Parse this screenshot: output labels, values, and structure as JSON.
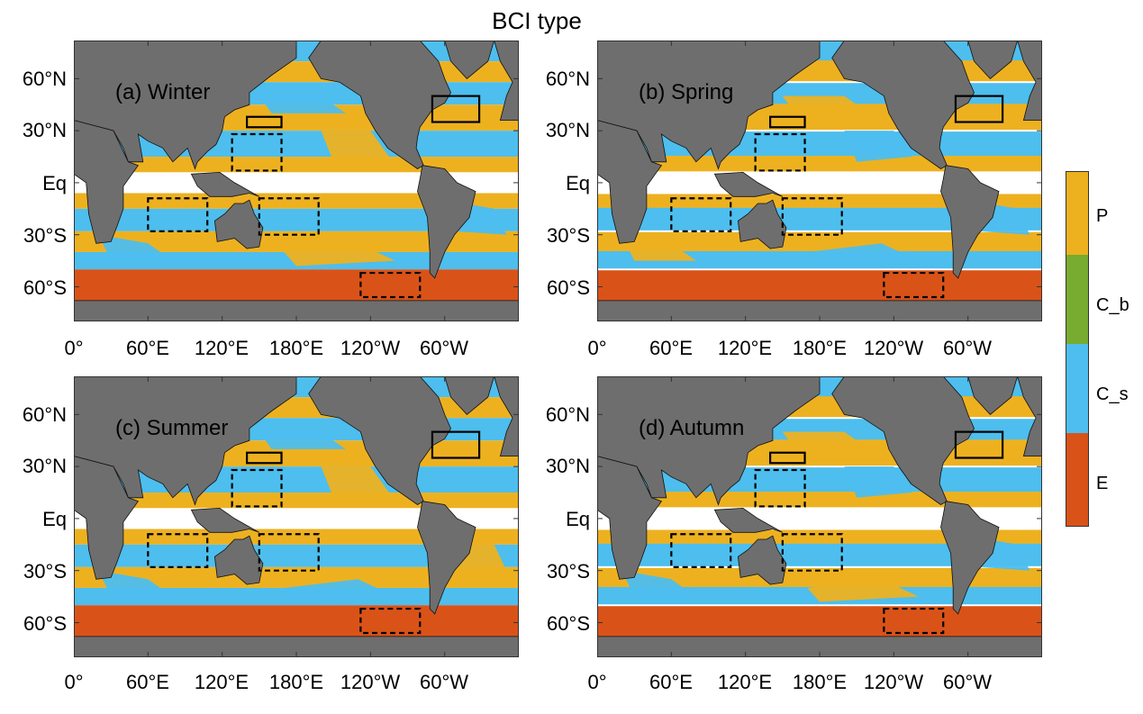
{
  "title": "BCI type",
  "colors": {
    "P": "#EDB120",
    "C_b": "#77AC30",
    "C_s": "#4DBEEE",
    "E": "#D95319",
    "land": "#6E6E6E",
    "missing": "#FFFFFF"
  },
  "y_ticks": [
    "60°N",
    "30°N",
    "Eq",
    "30°S",
    "60°S"
  ],
  "x_ticks": [
    "0°",
    "60°E",
    "120°E",
    "180°E",
    "120°W",
    "60°W"
  ],
  "panels": [
    {
      "id": "winter",
      "label": "(a) Winter"
    },
    {
      "id": "spring",
      "label": "(b) Spring"
    },
    {
      "id": "summer",
      "label": "(c) Summer"
    },
    {
      "id": "autumn",
      "label": "(d) Autumn"
    }
  ],
  "colorbar": {
    "categories": [
      "P",
      "C_b",
      "C_s",
      "E"
    ]
  }
}
